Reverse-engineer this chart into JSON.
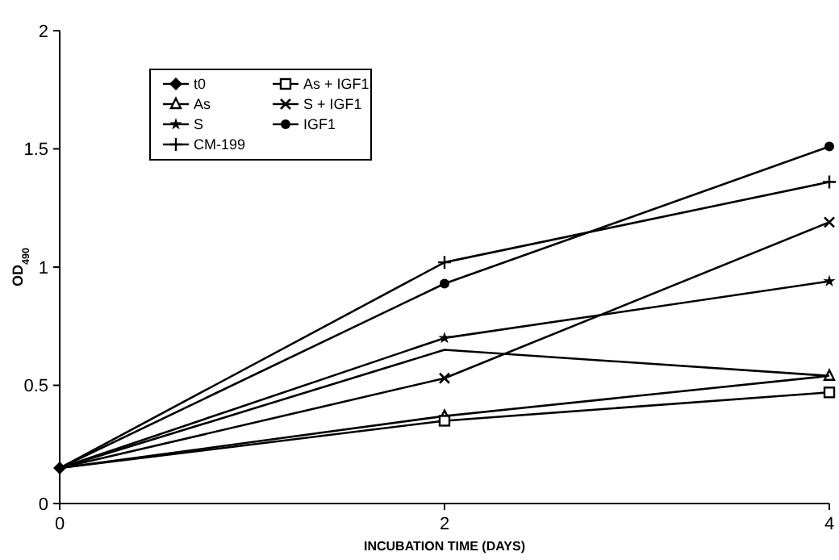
{
  "chart_data": {
    "type": "line",
    "xlabel": "INCUBATION TIME (DAYS)",
    "ylabel": "OD$_{490}$",
    "xlim": [
      0,
      4
    ],
    "xticks": [
      0,
      2,
      4
    ],
    "ylim": [
      0,
      2
    ],
    "yticks": [
      0,
      0.5,
      1,
      1.5,
      2
    ],
    "grid": false,
    "legend": "top left",
    "line_style": "solid",
    "series": [
      {
        "name": "t0",
        "color": "#000000",
        "marker": "diamond",
        "x": [
          0
        ],
        "values": [
          0.15
        ]
      },
      {
        "name": "As",
        "color": "#000000",
        "marker": "triangle",
        "x": [
          0,
          2,
          4
        ],
        "values": [
          0.15,
          0.37,
          0.54
        ]
      },
      {
        "name": "S",
        "color": "#000000",
        "marker": "star",
        "x": [
          0,
          2,
          4
        ],
        "values": [
          0.15,
          0.7,
          0.94
        ]
      },
      {
        "name": "CM-199",
        "color": "#000000",
        "marker": "plus",
        "x": [
          0,
          2,
          4
        ],
        "values": [
          0.15,
          1.02,
          1.36
        ]
      },
      {
        "name": "As + IGF1",
        "color": "#000000",
        "marker": "square",
        "x": [
          0,
          2,
          4
        ],
        "values": [
          0.15,
          0.35,
          0.47
        ]
      },
      {
        "name": "S + IGF1",
        "color": "#000000",
        "marker": "cross",
        "x": [
          0,
          2,
          4
        ],
        "values": [
          0.15,
          0.53,
          1.19
        ]
      },
      {
        "name": "IGF1",
        "color": "#000000",
        "marker": "circle",
        "x": [
          0,
          2,
          4
        ],
        "values": [
          0.15,
          0.93,
          1.51
        ]
      },
      {
        "color": "#000000",
        "marker": "none",
        "x": [
          0,
          2,
          4
        ],
        "values": [
          0.15,
          0.65,
          0.54
        ]
      }
    ]
  }
}
